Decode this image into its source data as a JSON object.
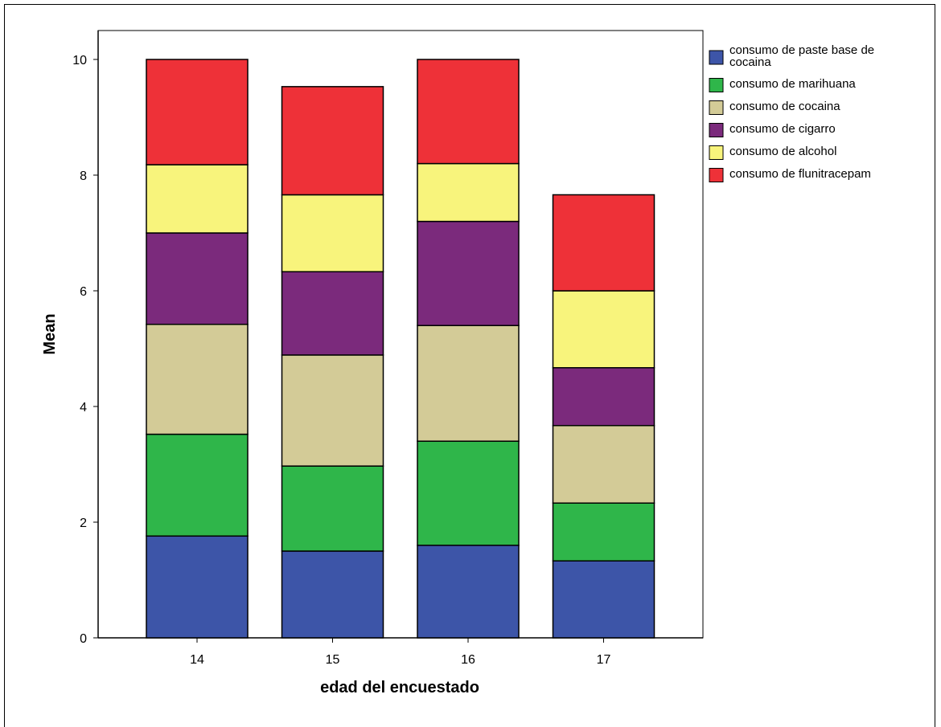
{
  "chart_data": {
    "type": "bar",
    "stacked": true,
    "xlabel": "edad del encuestado",
    "ylabel": "Mean",
    "ylim": [
      0,
      10.5
    ],
    "yticks": [
      0,
      2,
      4,
      6,
      8,
      10
    ],
    "categories": [
      "14",
      "15",
      "16",
      "17"
    ],
    "series": [
      {
        "name": "consumo de paste base de cocaina",
        "color": "#3d55a8",
        "values": [
          1.76,
          1.5,
          1.6,
          1.33
        ]
      },
      {
        "name": "consumo de marihuana",
        "color": "#2fb64a",
        "values": [
          1.76,
          1.47,
          1.8,
          1.0
        ]
      },
      {
        "name": "consumo de cocaina",
        "color": "#d3cb97",
        "values": [
          1.9,
          1.92,
          2.0,
          1.34
        ]
      },
      {
        "name": "consumo de cigarro",
        "color": "#7b2a7c",
        "values": [
          1.58,
          1.44,
          1.8,
          1.0
        ]
      },
      {
        "name": "consumo de alcohol",
        "color": "#f8f47c",
        "values": [
          1.18,
          1.33,
          1.0,
          1.33
        ]
      },
      {
        "name": "consumo de flunitracepam",
        "color": "#ee3138",
        "values": [
          1.82,
          1.87,
          1.8,
          1.66
        ]
      }
    ],
    "legend_position": "right",
    "grid": false
  }
}
